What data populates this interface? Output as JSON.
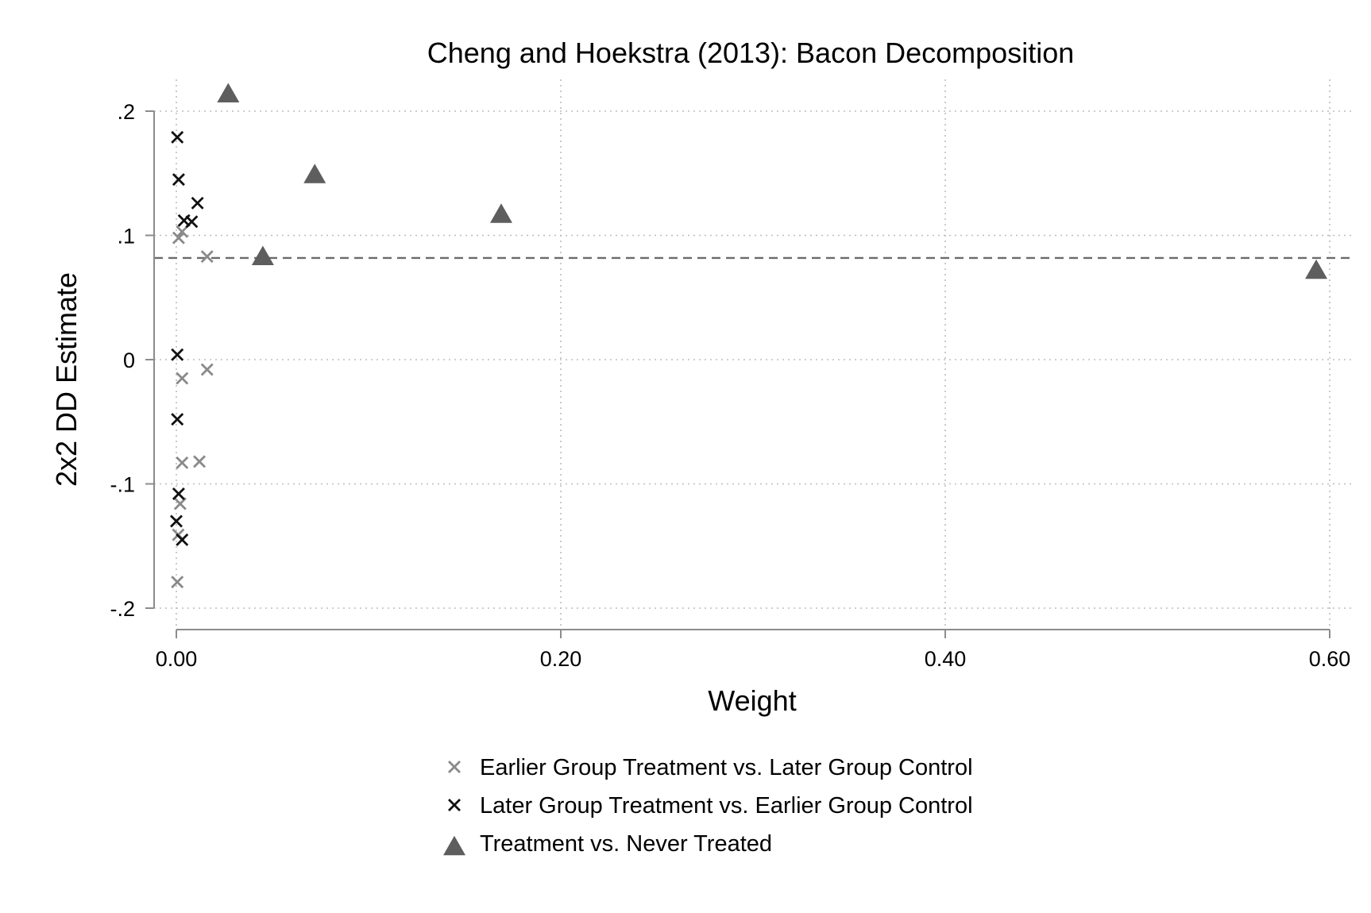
{
  "chart_data": {
    "type": "scatter",
    "title": "Cheng and Hoekstra (2013): Bacon Decomposition",
    "xlabel": "Weight",
    "ylabel": "2x2 DD Estimate",
    "xlim": [
      0,
      0.6
    ],
    "ylim": [
      -0.2,
      0.2
    ],
    "x_ticks": [
      {
        "value": 0,
        "label": "0.00"
      },
      {
        "value": 0.2,
        "label": "0.20"
      },
      {
        "value": 0.4,
        "label": "0.40"
      },
      {
        "value": 0.6,
        "label": "0.60"
      }
    ],
    "y_ticks": [
      {
        "value": -0.2,
        "label": "-.2"
      },
      {
        "value": -0.1,
        "label": "-.1"
      },
      {
        "value": 0,
        "label": "0"
      },
      {
        "value": 0.1,
        "label": ".1"
      },
      {
        "value": 0.2,
        "label": ".2"
      }
    ],
    "grid": true,
    "reference_line": {
      "y": 0.0818,
      "style": "dashed",
      "color": "#6b6b6b"
    },
    "legend_position": "bottom",
    "series": [
      {
        "name": "Earlier Group Treatment vs. Later Group Control",
        "marker": "x",
        "color": "#8a8a8a",
        "points": [
          {
            "x": 0.0012,
            "y": 0.098
          },
          {
            "x": 0.003,
            "y": 0.103
          },
          {
            "x": 0.016,
            "y": 0.083
          },
          {
            "x": 0.003,
            "y": -0.015
          },
          {
            "x": 0.016,
            "y": -0.008
          },
          {
            "x": 0.003,
            "y": -0.083
          },
          {
            "x": 0.012,
            "y": -0.082
          },
          {
            "x": 0.002,
            "y": -0.116
          },
          {
            "x": 0.001,
            "y": -0.141
          },
          {
            "x": 0.0005,
            "y": -0.179
          }
        ]
      },
      {
        "name": "Later Group Treatment vs. Earlier Group Control",
        "marker": "x",
        "color": "#111111",
        "points": [
          {
            "x": 0.0005,
            "y": 0.179
          },
          {
            "x": 0.0012,
            "y": 0.145
          },
          {
            "x": 0.011,
            "y": 0.126
          },
          {
            "x": 0.004,
            "y": 0.112
          },
          {
            "x": 0.008,
            "y": 0.111
          },
          {
            "x": 0.0005,
            "y": 0.004
          },
          {
            "x": 0.0005,
            "y": -0.048
          },
          {
            "x": 0.0012,
            "y": -0.108
          },
          {
            "x": 0.0,
            "y": -0.13
          },
          {
            "x": 0.003,
            "y": -0.145
          }
        ]
      },
      {
        "name": "Treatment vs. Never Treated",
        "marker": "triangle",
        "color": "#5e5e5e",
        "points": [
          {
            "x": 0.027,
            "y": 0.213
          },
          {
            "x": 0.072,
            "y": 0.148
          },
          {
            "x": 0.169,
            "y": 0.116
          },
          {
            "x": 0.045,
            "y": 0.082
          },
          {
            "x": 0.593,
            "y": 0.071
          }
        ]
      }
    ]
  }
}
